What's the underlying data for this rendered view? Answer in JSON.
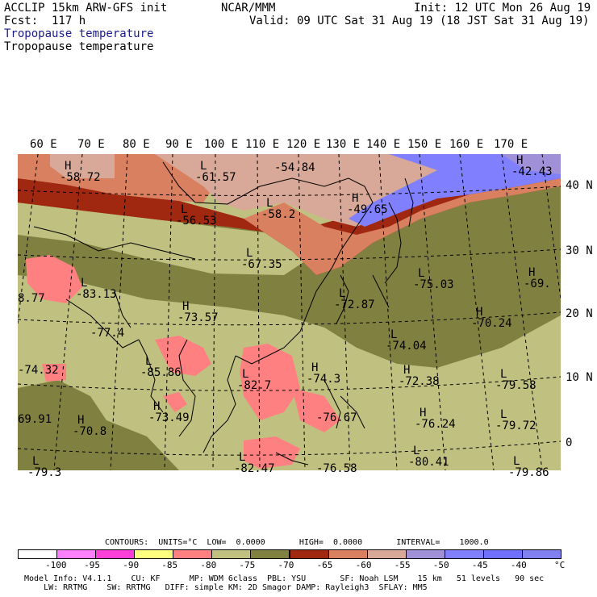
{
  "header": {
    "model_title": "ACCLIP 15km ARW-GFS init",
    "center": "NCAR/MMM",
    "init": "Init: 12 UTC Mon 26 Aug 19",
    "fcst": "Fcst:  117 h",
    "valid": "Valid: 09 UTC Sat 31 Aug 19 (18 JST Sat 31 Aug 19)",
    "field1": "Tropopause temperature",
    "field2": "Tropopause temperature",
    "field1_color": "#1a1a8a"
  },
  "map": {
    "lon_labels": [
      "60 E",
      "70 E",
      "80 E",
      "90 E",
      "100 E",
      "110 E",
      "120 E",
      "130 E",
      "140 E",
      "150 E",
      "160 E",
      "170 E"
    ],
    "lat_labels": [
      "40 N",
      "30 N",
      "20 N",
      "10 N",
      "0"
    ],
    "extrema": [
      {
        "kind": "H",
        "value": "-58.72"
      },
      {
        "kind": "L",
        "value": "-61.57"
      },
      {
        "kind": "",
        "value": "-54.84"
      },
      {
        "kind": "H",
        "value": "-42.43"
      },
      {
        "kind": "L",
        "value": "-56.53"
      },
      {
        "kind": "L",
        "value": "-58.2"
      },
      {
        "kind": "H",
        "value": "-49.65"
      },
      {
        "kind": "L",
        "value": "-67.35"
      },
      {
        "kind": "L",
        "value": "-75.03"
      },
      {
        "kind": "H",
        "value": "-69."
      },
      {
        "kind": "L",
        "value": "-83.13"
      },
      {
        "kind": "",
        "value": "8.77"
      },
      {
        "kind": "L",
        "value": "-72.87"
      },
      {
        "kind": "H",
        "value": "-73.57"
      },
      {
        "kind": "",
        "value": "-77.4"
      },
      {
        "kind": "H",
        "value": "-70.24"
      },
      {
        "kind": "L",
        "value": "-74.04"
      },
      {
        "kind": "",
        "value": "-74.32"
      },
      {
        "kind": "L",
        "value": "-85.86"
      },
      {
        "kind": "L",
        "value": "-82.7"
      },
      {
        "kind": "H",
        "value": "-74.3"
      },
      {
        "kind": "H",
        "value": "-72.38"
      },
      {
        "kind": "L",
        "value": "-79.58"
      },
      {
        "kind": "",
        "value": "69.91"
      },
      {
        "kind": "H",
        "value": "-70.8"
      },
      {
        "kind": "H",
        "value": "-73.49"
      },
      {
        "kind": "",
        "value": "-76.67"
      },
      {
        "kind": "H",
        "value": "-76.24"
      },
      {
        "kind": "L",
        "value": "-79.72"
      },
      {
        "kind": "L",
        "value": "-80.41"
      },
      {
        "kind": "L",
        "value": "-82.47"
      },
      {
        "kind": "",
        "value": "-76.58"
      },
      {
        "kind": "L",
        "value": "-79.86"
      },
      {
        "kind": "L",
        "value": "-79.3"
      }
    ]
  },
  "contours": {
    "line": "CONTOURS:  UNITS=°C  LOW=  0.0000       HIGH=  0.0000       INTERVAL=    1000.0"
  },
  "colorbar": {
    "colors": [
      "#ffffff",
      "#ff80ff",
      "#ff40d8",
      "#ffff80",
      "#ff8080",
      "#c0c080",
      "#808040",
      "#a02810",
      "#d88060",
      "#d8a898",
      "#a090d8",
      "#8080ff",
      "#7070ff",
      "#8080f0"
    ],
    "labels": [
      "-100",
      "-95",
      "-90",
      "-85",
      "-80",
      "-75",
      "-70",
      "-65",
      "-60",
      "-55",
      "-50",
      "-45",
      "-40"
    ],
    "unit": "°C"
  },
  "footer": {
    "line1": "Model Info: V4.1.1    CU: KF      MP: WDM 6class  PBL: YSU       SF: Noah LSM    15 km   51 levels   90 sec",
    "line2": "    LW: RRTMG    SW: RRTMG   DIFF: simple KM: 2D Smagor DAMP: Rayleigh3  SFLAY: MM5"
  }
}
